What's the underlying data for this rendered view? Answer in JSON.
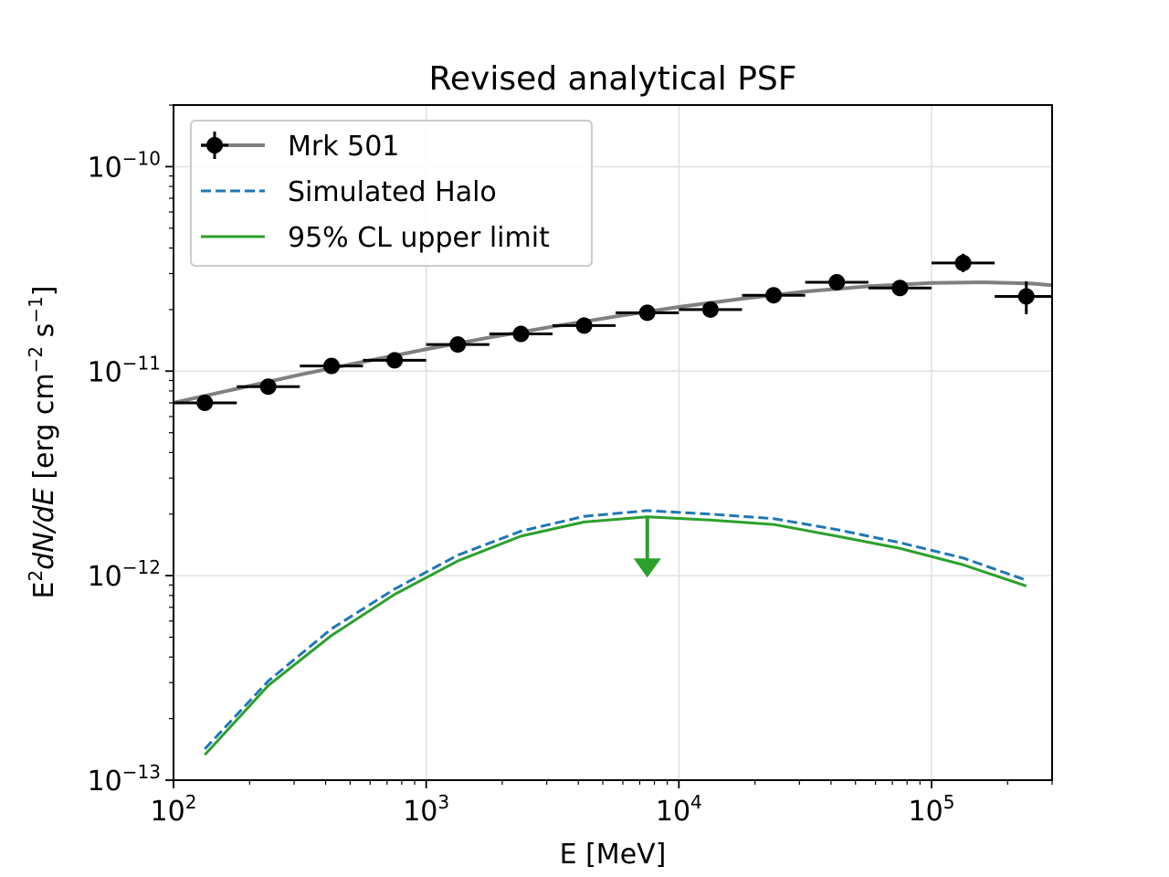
{
  "chart_data": {
    "type": "line",
    "title": "Revised analytical PSF",
    "xlabel": "E [MeV]",
    "ylabel": {
      "parts": [
        "E",
        "2",
        "dN/dE",
        " [erg cm",
        "−2",
        " s",
        "−1",
        "]"
      ]
    },
    "xscale": "log",
    "yscale": "log",
    "xlim": [
      100,
      300000
    ],
    "ylim": [
      1e-13,
      2e-10
    ],
    "grid": true,
    "x_ticks": [
      {
        "value": 100,
        "base": "10",
        "exp": "2"
      },
      {
        "value": 1000,
        "base": "10",
        "exp": "3"
      },
      {
        "value": 10000,
        "base": "10",
        "exp": "4"
      },
      {
        "value": 100000,
        "base": "10",
        "exp": "5"
      }
    ],
    "y_ticks": [
      {
        "value": 1e-13,
        "base": "10",
        "exp": "−13"
      },
      {
        "value": 1e-12,
        "base": "10",
        "exp": "−12"
      },
      {
        "value": 1e-11,
        "base": "10",
        "exp": "−11"
      },
      {
        "value": 1e-10,
        "base": "10",
        "exp": "−10"
      }
    ],
    "legend": {
      "position": "upper-left",
      "entries": [
        {
          "label": "Mrk 501",
          "series": "mrk501"
        },
        {
          "label": "Simulated Halo",
          "series": "halo"
        },
        {
          "label": "95% CL upper limit",
          "series": "ul"
        }
      ]
    },
    "series": [
      {
        "id": "mrk501",
        "name": "Mrk 501",
        "kind": "errorbar",
        "color": "#000000",
        "points": [
          {
            "x": 133,
            "y": 7e-12,
            "xlo": 100,
            "xhi": 178
          },
          {
            "x": 237,
            "y": 8.4e-12,
            "xlo": 178,
            "xhi": 316
          },
          {
            "x": 422,
            "y": 1.06e-11,
            "xlo": 316,
            "xhi": 562
          },
          {
            "x": 750,
            "y": 1.13e-11,
            "xlo": 562,
            "xhi": 1000
          },
          {
            "x": 1334,
            "y": 1.35e-11,
            "xlo": 1000,
            "xhi": 1778
          },
          {
            "x": 2371,
            "y": 1.52e-11,
            "xlo": 1778,
            "xhi": 3162
          },
          {
            "x": 4217,
            "y": 1.67e-11,
            "xlo": 3162,
            "xhi": 5623
          },
          {
            "x": 7499,
            "y": 1.93e-11,
            "xlo": 5623,
            "xhi": 10000
          },
          {
            "x": 13335,
            "y": 2e-11,
            "xlo": 10000,
            "xhi": 17783
          },
          {
            "x": 23714,
            "y": 2.35e-11,
            "xlo": 17783,
            "xhi": 31623
          },
          {
            "x": 42170,
            "y": 2.72e-11,
            "xlo": 31623,
            "xhi": 56234
          },
          {
            "x": 74989,
            "y": 2.55e-11,
            "xlo": 56234,
            "xhi": 100000
          },
          {
            "x": 133352,
            "y": 3.38e-11,
            "xlo": 100000,
            "xhi": 177828,
            "ylo": 3.05e-11,
            "yhi": 3.75e-11
          },
          {
            "x": 237137,
            "y": 2.32e-11,
            "xlo": 177828,
            "xhi": 316228,
            "ylo": 1.9e-11,
            "yhi": 2.75e-11
          }
        ]
      },
      {
        "id": "mrk501-model",
        "name": "Mrk 501 model",
        "kind": "line",
        "color": "#808080",
        "x": [
          100,
          178,
          316,
          562,
          1000,
          1778,
          3162,
          5623,
          10000,
          17783,
          31623,
          56234,
          100000,
          160000,
          250000,
          300000
        ],
        "y": [
          7e-12,
          8.2e-12,
          9.6e-12,
          1.11e-11,
          1.28e-11,
          1.46e-11,
          1.65e-11,
          1.85e-11,
          2.06e-11,
          2.26e-11,
          2.45e-11,
          2.6e-11,
          2.7e-11,
          2.72e-11,
          2.68e-11,
          2.63e-11
        ]
      },
      {
        "id": "halo",
        "name": "Simulated Halo",
        "kind": "line",
        "style": "dashed",
        "color": "#1f77b4",
        "x": [
          133,
          237,
          422,
          750,
          1334,
          2371,
          4217,
          7499,
          13335,
          23714,
          42170,
          74989,
          133352,
          237137
        ],
        "y": [
          1.42e-13,
          3.05e-13,
          5.5e-13,
          8.6e-13,
          1.26e-12,
          1.65e-12,
          1.95e-12,
          2.08e-12,
          2e-12,
          1.9e-12,
          1.68e-12,
          1.45e-12,
          1.22e-12,
          9.5e-13
        ]
      },
      {
        "id": "ul",
        "name": "95% CL upper limit",
        "kind": "line",
        "color": "#2ca02c",
        "x": [
          133,
          237,
          422,
          750,
          1334,
          2371,
          4217,
          7499,
          13335,
          23714,
          42170,
          74989,
          133352,
          237137
        ],
        "y": [
          1.33e-13,
          2.9e-13,
          5.1e-13,
          8.1e-13,
          1.18e-12,
          1.56e-12,
          1.83e-12,
          1.94e-12,
          1.87e-12,
          1.78e-12,
          1.56e-12,
          1.36e-12,
          1.13e-12,
          8.9e-13
        ]
      }
    ],
    "upper_limit_arrow": {
      "x": 7499,
      "y_from": 1.94e-12,
      "y_to": 1.03e-12,
      "color": "#2ca02c"
    },
    "colors": {
      "grid": "#e0e0e0",
      "axes": "#000000",
      "legend_border": "#cccccc"
    }
  }
}
